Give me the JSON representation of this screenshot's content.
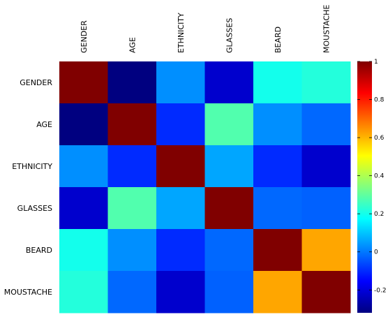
{
  "chart_data": {
    "type": "heatmap",
    "rows": [
      "GENDER",
      "AGE",
      "ETHNICITY",
      "GLASSES",
      "BEARD",
      "MOUSTACHE"
    ],
    "columns": [
      "GENDER",
      "AGE",
      "ETHNICITY",
      "GLASSES",
      "BEARD",
      "MOUSTACHE"
    ],
    "values": [
      [
        1.0,
        -0.32,
        0.03,
        -0.22,
        0.2,
        0.22
      ],
      [
        -0.32,
        1.0,
        -0.1,
        0.28,
        0.03,
        -0.02
      ],
      [
        0.03,
        -0.1,
        1.0,
        0.06,
        -0.1,
        -0.22
      ],
      [
        -0.22,
        0.28,
        0.06,
        1.0,
        -0.02,
        -0.03
      ],
      [
        0.2,
        0.03,
        -0.1,
        -0.02,
        1.0,
        0.62
      ],
      [
        0.22,
        -0.02,
        -0.22,
        -0.03,
        0.62,
        1.0
      ]
    ],
    "colorbar": {
      "colormap": "jet",
      "vmin": -0.32,
      "vmax": 1.0,
      "ticks": [
        {
          "value": 1.0,
          "label": "1"
        },
        {
          "value": 0.8,
          "label": "0.8"
        },
        {
          "value": 0.6,
          "label": "0.6"
        },
        {
          "value": 0.4,
          "label": "0.4"
        },
        {
          "value": 0.2,
          "label": "0.2"
        },
        {
          "value": 0.0,
          "label": "0"
        },
        {
          "value": -0.2,
          "label": "-0.2"
        }
      ]
    }
  }
}
